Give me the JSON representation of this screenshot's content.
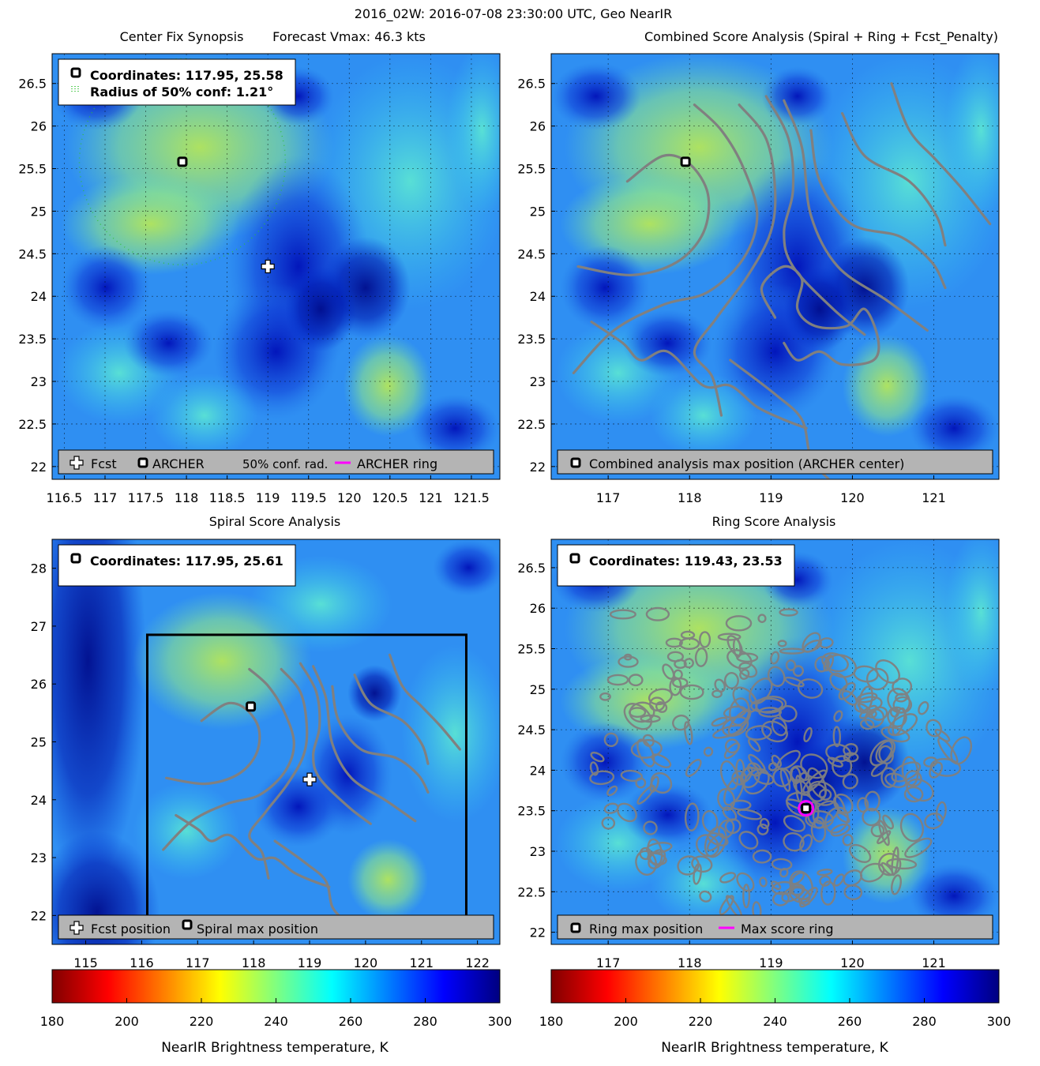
{
  "figure": {
    "title": "2016_02W: 2016-07-08 23:30:00 UTC, Geo NearIR"
  },
  "colorbar": {
    "label": "NearIR Brightness temperature, K",
    "ticks": [
      180,
      200,
      220,
      240,
      260,
      280,
      300
    ]
  },
  "colors": {
    "contour": "#808080",
    "fcst": "#ffffff",
    "ring": "#ff00ff",
    "legend_bg": "#b4b4b4"
  },
  "chart_data": [
    {
      "id": "center-fix",
      "type": "heatmap",
      "title_left": "Center Fix Synopsis",
      "title_right": "Forecast Vmax: 46.3 kts",
      "xlim": [
        116.35,
        121.85
      ],
      "ylim": [
        21.85,
        26.85
      ],
      "x_ticks": [
        116.5,
        117,
        117.5,
        118,
        118.5,
        119,
        119.5,
        120,
        120.5,
        121,
        121.5
      ],
      "y_ticks": [
        22,
        22.5,
        23,
        23.5,
        24,
        24.5,
        25,
        25.5,
        26,
        26.5
      ],
      "x_tick_labels": [
        "116.5",
        "117",
        "117.5",
        "118",
        "118.5",
        "119",
        "119.5",
        "120",
        "120.5",
        "121",
        "121.5"
      ],
      "y_tick_labels": [
        "22",
        "22.5",
        "23",
        "23.5",
        "24",
        "24.5",
        "25",
        "25.5",
        "26",
        "26.5"
      ],
      "grid": true,
      "info_lines": [
        "Coordinates: 117.95, 25.58",
        "Radius of 50% conf: 1.21°"
      ],
      "legend": [
        "Fcst",
        "ARCHER",
        "50% conf. rad.",
        "ARCHER ring"
      ],
      "markers": [
        {
          "kind": "archer",
          "x": 117.95,
          "y": 25.58
        },
        {
          "kind": "fcst",
          "x": 119.0,
          "y": 24.35
        }
      ],
      "confidence_radius_deg": 1.21
    },
    {
      "id": "combined",
      "type": "heatmap",
      "title": "Combined Score Analysis (Spiral + Ring + Fcst_Penalty)",
      "xlim": [
        116.3,
        121.8
      ],
      "ylim": [
        21.85,
        26.85
      ],
      "x_ticks": [
        117,
        118,
        119,
        120,
        121
      ],
      "y_ticks": [
        22,
        22.5,
        23,
        23.5,
        24,
        24.5,
        25,
        25.5,
        26,
        26.5
      ],
      "x_tick_labels": [
        "117",
        "118",
        "119",
        "120",
        "121"
      ],
      "y_tick_labels": [
        "22",
        "22.5",
        "23",
        "23.5",
        "24",
        "24.5",
        "25",
        "25.5",
        "26",
        "26.5"
      ],
      "grid": true,
      "legend": [
        "Combined analysis max position (ARCHER center)"
      ],
      "markers": [
        {
          "kind": "archer",
          "x": 117.95,
          "y": 25.58
        }
      ]
    },
    {
      "id": "spiral",
      "type": "heatmap",
      "title": "Spiral Score Analysis",
      "xlim": [
        114.4,
        122.4
      ],
      "ylim": [
        21.5,
        28.5
      ],
      "x_ticks": [
        115,
        116,
        117,
        118,
        119,
        120,
        121,
        122
      ],
      "y_ticks": [
        22,
        23,
        24,
        25,
        26,
        27,
        28
      ],
      "x_tick_labels": [
        "115",
        "116",
        "117",
        "118",
        "119",
        "120",
        "121",
        "122"
      ],
      "y_tick_labels": [
        "22",
        "23",
        "24",
        "25",
        "26",
        "27",
        "28"
      ],
      "grid": false,
      "info_lines": [
        "Coordinates: 117.95, 25.61"
      ],
      "legend": [
        "Fcst position",
        "Spiral max position"
      ],
      "markers": [
        {
          "kind": "archer",
          "x": 117.95,
          "y": 25.61
        },
        {
          "kind": "fcst",
          "x": 119.0,
          "y": 24.35
        }
      ],
      "search_box": {
        "x": [
          116.1,
          121.8
        ],
        "y": [
          21.9,
          26.85
        ]
      }
    },
    {
      "id": "ring",
      "type": "heatmap",
      "title": "Ring Score Analysis",
      "xlim": [
        116.3,
        121.8
      ],
      "ylim": [
        21.85,
        26.85
      ],
      "x_ticks": [
        117,
        118,
        119,
        120,
        121
      ],
      "y_ticks": [
        22,
        22.5,
        23,
        23.5,
        24,
        24.5,
        25,
        25.5,
        26,
        26.5
      ],
      "x_tick_labels": [
        "117",
        "118",
        "119",
        "120",
        "121"
      ],
      "y_tick_labels": [
        "22",
        "22.5",
        "23",
        "23.5",
        "24",
        "24.5",
        "25",
        "25.5",
        "26",
        "26.5"
      ],
      "grid": true,
      "info_lines": [
        "Coordinates: 119.43, 23.53"
      ],
      "legend": [
        "Ring max position",
        "Max score ring"
      ],
      "markers": [
        {
          "kind": "archer",
          "x": 119.43,
          "y": 23.53
        }
      ],
      "max_ring": {
        "x": 119.43,
        "y": 23.53
      }
    }
  ]
}
